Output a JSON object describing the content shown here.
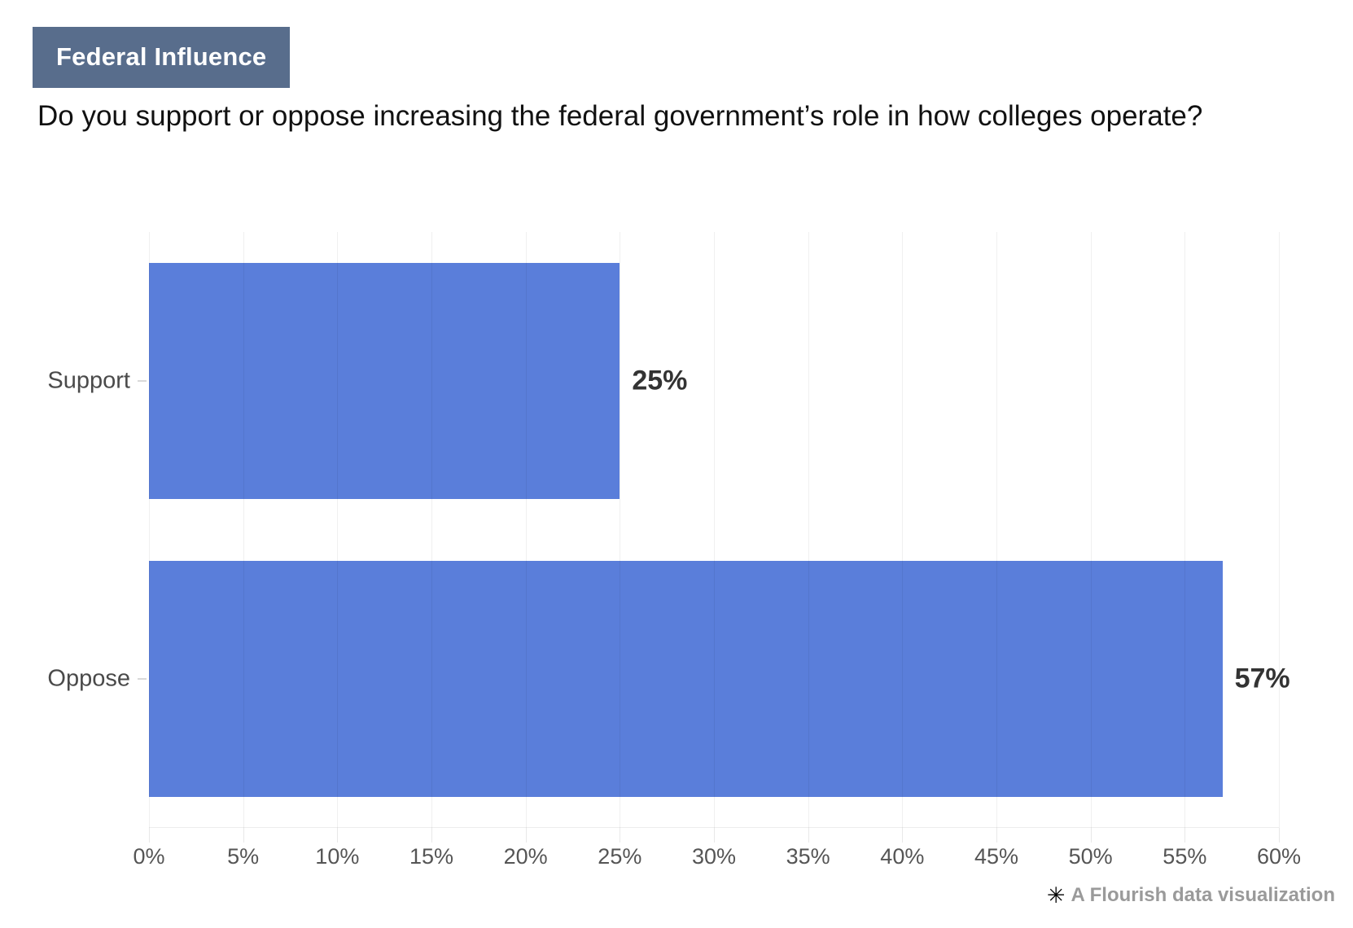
{
  "badge": {
    "label": "Federal Influence",
    "bg_color": "#586d8c"
  },
  "title": "Do you support or oppose increasing the federal government’s role in how colleges operate?",
  "chart_data": {
    "type": "bar",
    "orientation": "horizontal",
    "categories": [
      "Support",
      "Oppose"
    ],
    "values": [
      25,
      57
    ],
    "value_labels": [
      "25%",
      "57%"
    ],
    "xlim": [
      0,
      60
    ],
    "tick_step": 5,
    "x_ticks": [
      "0%",
      "5%",
      "10%",
      "15%",
      "20%",
      "25%",
      "30%",
      "35%",
      "40%",
      "45%",
      "50%",
      "55%",
      "60%"
    ],
    "bar_color": "#5a7eda",
    "grid": true,
    "legend": "none",
    "title": "Do you support or oppose increasing the federal government’s role in how colleges operate?"
  },
  "attribution": {
    "icon": "✳",
    "text": "A Flourish data visualization"
  }
}
